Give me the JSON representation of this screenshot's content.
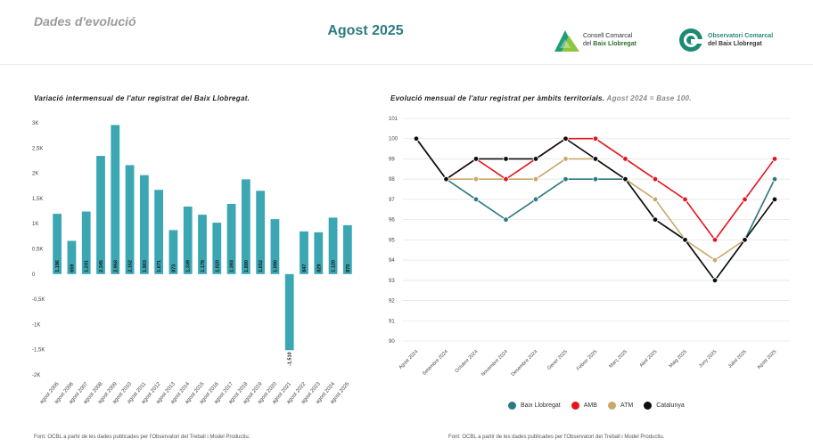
{
  "header": {
    "section_title": "Dades d'evolució",
    "period": "Agost 2025",
    "logo_left": {
      "line1": "Consell Comarcal",
      "line2": "del ",
      "line2_bold": "Baix Llobregat"
    },
    "logo_right": {
      "line1": "Observatori Comarcal",
      "line2": "del Baix Llobregat"
    }
  },
  "colors": {
    "bar": "#3aa7b3",
    "baix": "#2b7a80",
    "amb": "#e3141c",
    "atm": "#c9a86a",
    "cat": "#0c0c0c",
    "grid": "#e6e6e6"
  },
  "footer": {
    "source_left": "Font: OCBL a partir de les dades publicades per l'Observatori del Treball i Model Productiu.",
    "source_right": "Font: OCBL a partir de les dades publicades per l'Observatori del Treball i Model Productiu."
  },
  "chart_data": [
    {
      "type": "bar",
      "title": "Variació intermensual de l'atur registrat del Baix Llobregat.",
      "categories": [
        "agost 2005",
        "agost 2006",
        "agost 2007",
        "agost 2008",
        "agost 2009",
        "agost 2010",
        "agost 2011",
        "agost 2012",
        "agost 2013",
        "agost 2014",
        "agost 2015",
        "agost 2016",
        "agost 2017",
        "agost 2018",
        "agost 2019",
        "agost 2020",
        "agost 2021",
        "agost 2022",
        "agost 2023",
        "agost 2024",
        "agost 2025"
      ],
      "values": [
        1196,
        659,
        1241,
        2345,
        2958,
        2162,
        1963,
        1671,
        873,
        1339,
        1178,
        1020,
        1393,
        1880,
        1652,
        1090,
        -1510,
        847,
        829,
        1120,
        970
      ],
      "data_labels": [
        "1.196",
        "659",
        "1.241",
        "2.345",
        "2.958",
        "2.162",
        "1.963",
        "1.671",
        "873",
        "1.339",
        "1.178",
        "1.020",
        "1.393",
        "1.880",
        "1.652",
        "1.090",
        "-1.510",
        "847",
        "829",
        "1.120",
        "970"
      ],
      "ylim": [
        -2000,
        3000
      ],
      "yticks": [
        -2000,
        -1500,
        -1000,
        -500,
        0,
        500,
        1000,
        1500,
        2000,
        2500,
        3000
      ],
      "ytick_labels": [
        "-2K",
        "-1,5K",
        "-1K",
        "-0,5K",
        "0",
        "0,5K",
        "1K",
        "1,5K",
        "2K",
        "2,5K",
        "3K"
      ],
      "grid": false
    },
    {
      "type": "line",
      "title": "Evolució mensual de l'atur registrat per àmbits territorials.",
      "subtitle": "Agost 2024 = Base 100.",
      "categories": [
        "Agost 2024",
        "Setembre 2024",
        "Octubre 2024",
        "Novembre 2024",
        "Desembre 2024",
        "Gener 2025",
        "Febrer 2025",
        "Març 2025",
        "Abril 2025",
        "Maig 2025",
        "Juny 2025",
        "Juliol 2025",
        "Agost 2025"
      ],
      "ylim": [
        90,
        101
      ],
      "yticks": [
        90,
        91,
        92,
        93,
        94,
        95,
        96,
        97,
        98,
        99,
        100,
        101
      ],
      "ytick_labels": [
        "90",
        "91",
        "92",
        "93",
        "94",
        "95",
        "96",
        "97",
        "98",
        "99",
        "100",
        "101"
      ],
      "grid": true,
      "legend_position": "bottom",
      "series": [
        {
          "name": "Baix Llobregat",
          "color_key": "baix",
          "values": [
            100,
            98,
            97,
            96,
            97,
            98,
            98,
            98,
            96,
            95,
            93,
            95,
            98
          ]
        },
        {
          "name": "AMB",
          "color_key": "amb",
          "values": [
            100,
            98,
            99,
            98,
            99,
            100,
            100,
            99,
            98,
            97,
            95,
            97,
            99
          ]
        },
        {
          "name": "ATM",
          "color_key": "atm",
          "values": [
            100,
            98,
            98,
            98,
            98,
            99,
            99,
            98,
            97,
            95,
            94,
            95,
            98
          ]
        },
        {
          "name": "Catalunya",
          "color_key": "cat",
          "values": [
            100,
            98,
            99,
            99,
            99,
            100,
            99,
            98,
            96,
            95,
            93,
            95,
            97
          ]
        }
      ]
    }
  ]
}
